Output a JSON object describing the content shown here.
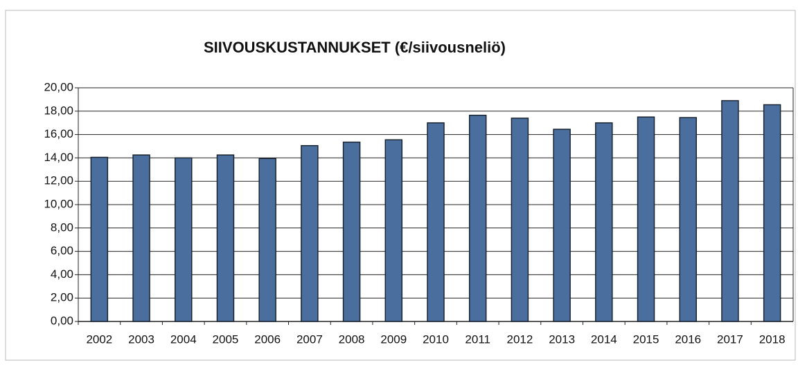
{
  "chart_data": {
    "type": "bar",
    "title": "SIIVOUSKUSTANNUKSET (€/siivousneliö)",
    "categories": [
      "2002",
      "2003",
      "2004",
      "2005",
      "2006",
      "2007",
      "2008",
      "2009",
      "2010",
      "2011",
      "2012",
      "2013",
      "2014",
      "2015",
      "2016",
      "2017",
      "2018"
    ],
    "values": [
      14.05,
      14.25,
      14.0,
      14.25,
      13.95,
      15.05,
      15.35,
      15.55,
      17.0,
      17.65,
      17.4,
      16.45,
      17.0,
      17.5,
      17.45,
      18.9,
      18.55
    ],
    "color": "#4a6f9e",
    "ylim": [
      0,
      20
    ],
    "yticks": [
      {
        "value": 0,
        "label": "0,00"
      },
      {
        "value": 2,
        "label": "2,00"
      },
      {
        "value": 4,
        "label": "4,00"
      },
      {
        "value": 6,
        "label": "6,00"
      },
      {
        "value": 8,
        "label": "8,00"
      },
      {
        "value": 10,
        "label": "10,00"
      },
      {
        "value": 12,
        "label": "12,00"
      },
      {
        "value": 14,
        "label": "14,00"
      },
      {
        "value": 16,
        "label": "16,00"
      },
      {
        "value": 18,
        "label": "18,00"
      },
      {
        "value": 20,
        "label": "20,00"
      }
    ],
    "grid": true
  }
}
